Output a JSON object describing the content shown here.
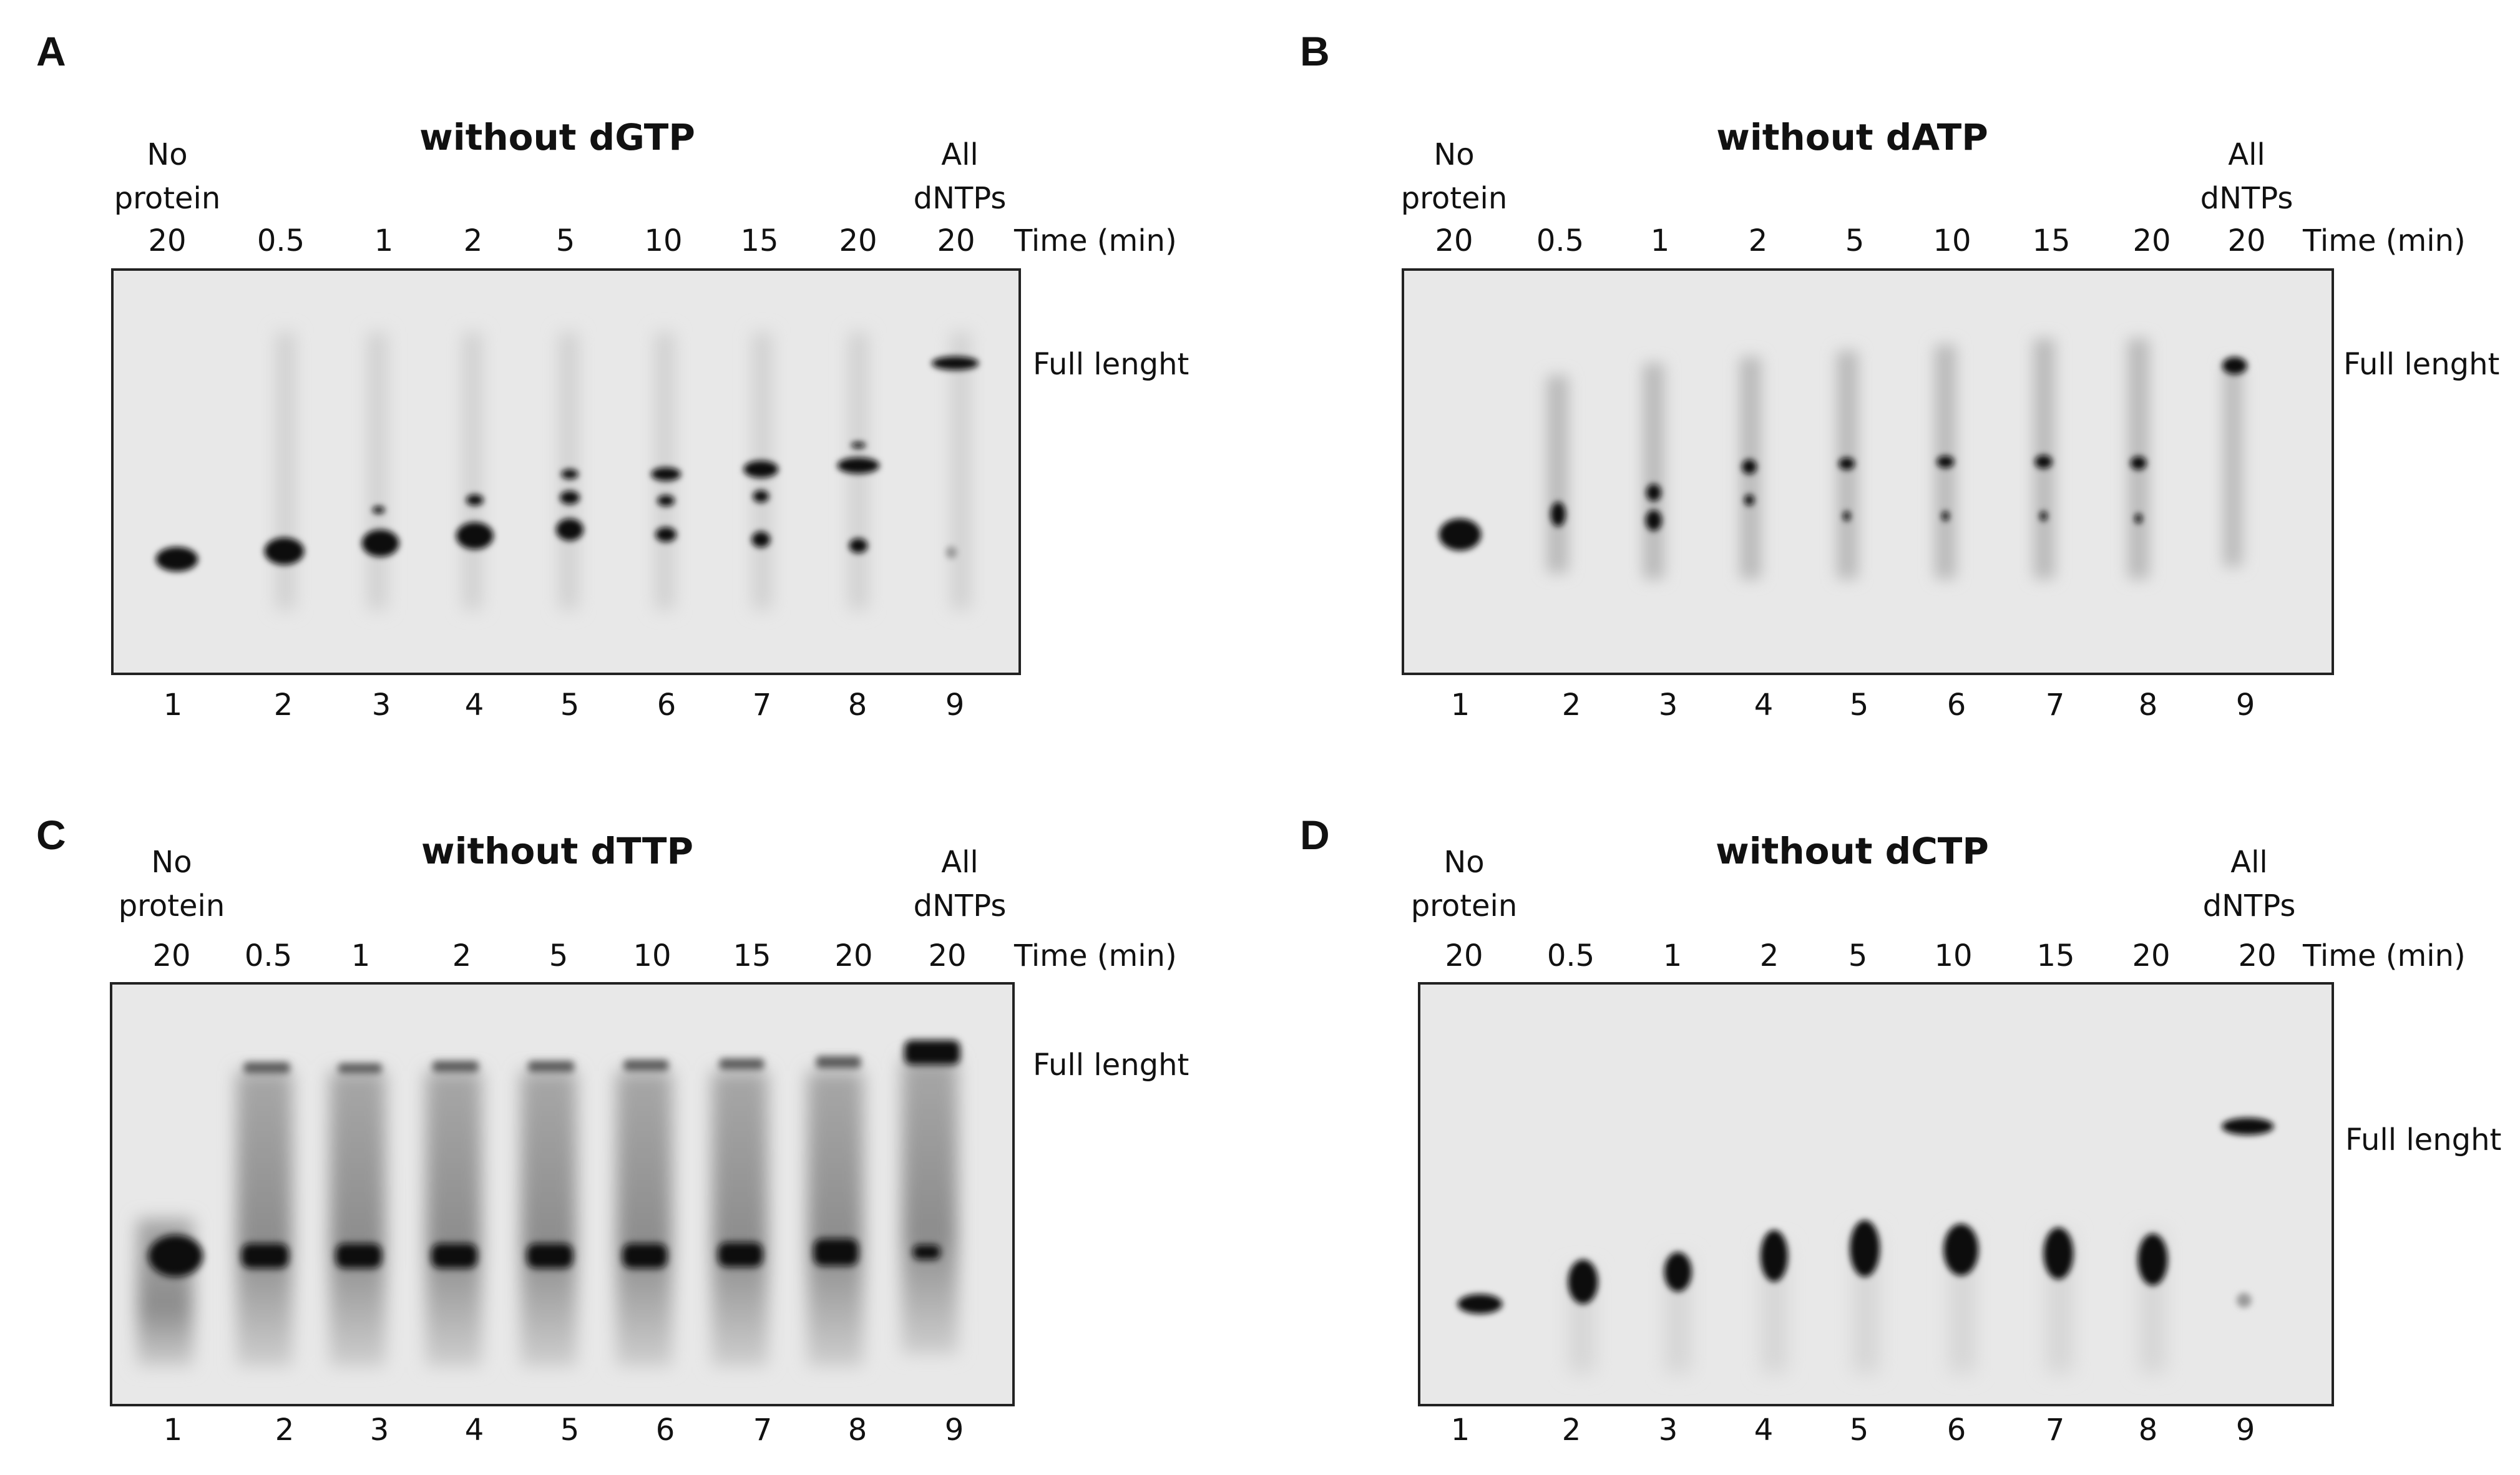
{
  "panels": [
    {
      "letter": "A",
      "title": "without dGTP",
      "no_protein_label": [
        "No",
        "protein"
      ],
      "all_dntps_label": [
        "All",
        "dNTPs"
      ],
      "time_label": "Time (min)",
      "times": [
        "20",
        "0.5",
        "1",
        "2",
        "5",
        "10",
        "15",
        "20",
        "20"
      ],
      "lanes": [
        "1",
        "2",
        "3",
        "4",
        "5",
        "6",
        "7",
        "8",
        "9"
      ],
      "band_label": "Full lenght"
    },
    {
      "letter": "B",
      "title": "without dATP",
      "no_protein_label": [
        "No",
        "protein"
      ],
      "all_dntps_label": [
        "All",
        "dNTPs"
      ],
      "time_label": "Time (min)",
      "times": [
        "20",
        "0.5",
        "1",
        "2",
        "5",
        "10",
        "15",
        "20",
        "20"
      ],
      "lanes": [
        "1",
        "2",
        "3",
        "4",
        "5",
        "6",
        "7",
        "8",
        "9"
      ],
      "band_label": "Full lenght"
    },
    {
      "letter": "C",
      "title": "without dTTP",
      "no_protein_label": [
        "No",
        "protein"
      ],
      "all_dntps_label": [
        "All",
        "dNTPs"
      ],
      "time_label": "Time (min)",
      "times": [
        "20",
        "0.5",
        "1",
        "2",
        "5",
        "10",
        "15",
        "20",
        "20"
      ],
      "lanes": [
        "1",
        "2",
        "3",
        "4",
        "5",
        "6",
        "7",
        "8",
        "9"
      ],
      "band_label": "Full lenght"
    },
    {
      "letter": "D",
      "title": "without dCTP",
      "no_protein_label": [
        "No",
        "protein"
      ],
      "all_dntps_label": [
        "All",
        "dNTPs"
      ],
      "time_label": "Time (min)",
      "times": [
        "20",
        "0.5",
        "1",
        "2",
        "5",
        "10",
        "15",
        "20",
        "20"
      ],
      "lanes": [
        "1",
        "2",
        "3",
        "4",
        "5",
        "6",
        "7",
        "8",
        "9"
      ],
      "band_label": "Full lenght"
    }
  ],
  "colors": {
    "gel_background": "#e8e8e8",
    "band": "#0a0a0a",
    "smear": "#9a9a9a"
  }
}
